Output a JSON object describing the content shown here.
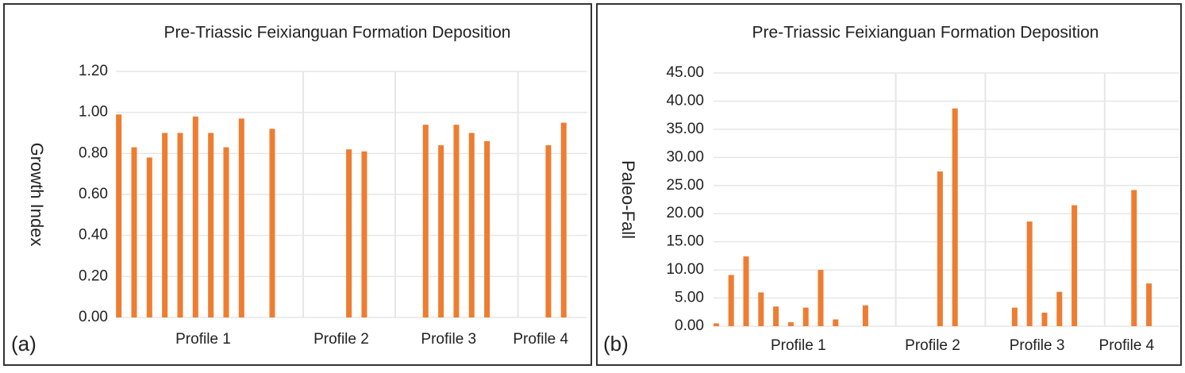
{
  "chart_data": [
    {
      "type": "bar",
      "panel_label": "(a)",
      "title": "Pre-Triassic Feixianguan Formation Deposition",
      "y_label": "Growth Index",
      "categories": [
        "Profile 1",
        "Profile 2",
        "Profile 3",
        "Profile 4"
      ],
      "values": [
        [
          0.99,
          0.83,
          0.78,
          0.9,
          0.9,
          0.98,
          0.9,
          0.83,
          0.97,
          null,
          0.92,
          null
        ],
        [
          null,
          null,
          null,
          0.82,
          0.81,
          null
        ],
        [
          null,
          null,
          0.94,
          0.84,
          0.94,
          0.9,
          0.86,
          null
        ],
        [
          null,
          null,
          0.84,
          0.95
        ]
      ],
      "color": "#ee7d31",
      "grid": true,
      "ylim": [
        0,
        1.2
      ],
      "yticks": [
        {
          "value": 0,
          "label": "0.00"
        },
        {
          "value": 0.2,
          "label": "0.20"
        },
        {
          "value": 0.4,
          "label": "0.40"
        },
        {
          "value": 0.6,
          "label": "0.60"
        },
        {
          "value": 0.8,
          "label": "0.80"
        },
        {
          "value": 1,
          "label": "1.00"
        },
        {
          "value": 1.2,
          "label": "1.20"
        }
      ]
    },
    {
      "type": "bar",
      "panel_label": "(b)",
      "title": "Pre-Triassic Feixianguan Formation Deposition",
      "y_label": "Paleo-Fall",
      "categories": [
        "Profile 1",
        "Profile 2",
        "Profile 3",
        "Profile 4"
      ],
      "values": [
        [
          0.5,
          9.1,
          12.4,
          6.0,
          3.5,
          0.7,
          3.3,
          10.0,
          1.2,
          null,
          3.7,
          null
        ],
        [
          null,
          null,
          null,
          27.5,
          38.7,
          null
        ],
        [
          null,
          null,
          3.3,
          18.6,
          2.4,
          6.1,
          21.5,
          null
        ],
        [
          null,
          null,
          24.2,
          7.6
        ]
      ],
      "color": "#ee7d31",
      "grid": true,
      "ylim": [
        0,
        45
      ],
      "yticks": [
        {
          "value": 0,
          "label": "0.00"
        },
        {
          "value": 5,
          "label": "5.00"
        },
        {
          "value": 10,
          "label": "10.00"
        },
        {
          "value": 15,
          "label": "15.00"
        },
        {
          "value": 20,
          "label": "20.00"
        },
        {
          "value": 25,
          "label": "25.00"
        },
        {
          "value": 30,
          "label": "30.00"
        },
        {
          "value": 35,
          "label": "35.00"
        },
        {
          "value": 40,
          "label": "40.00"
        },
        {
          "value": 45,
          "label": "45.00"
        }
      ]
    }
  ]
}
